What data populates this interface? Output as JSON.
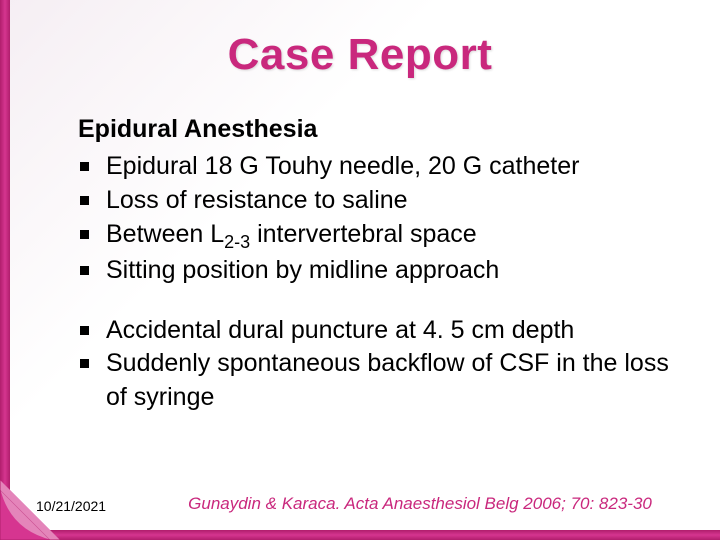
{
  "colors": {
    "accent": "#c9287d",
    "border_dark": "#b01e6c",
    "border_light": "#d63590",
    "bg_tint": "#f5eef3",
    "text": "#000000"
  },
  "typography": {
    "title_fontsize": 44,
    "subtitle_fontsize": 25,
    "body_fontsize": 25,
    "citation_fontsize": 17,
    "date_fontsize": 14,
    "font_family": "Arial"
  },
  "title": "Case Report",
  "subtitle": "Epidural Anesthesia",
  "group1": {
    "items": [
      "Epidural 18 G Touhy needle, 20 G catheter",
      "Loss of resistance to saline",
      "Between L__SUB__2-3__ENDSUB__ intervertebral space",
      "Sitting position by midline approach"
    ]
  },
  "group2": {
    "items": [
      "Accidental dural puncture at 4. 5 cm depth",
      "Suddenly spontaneous backflow of CSF in the loss of syringe"
    ]
  },
  "footer": {
    "date": "10/21/2021",
    "citation": "Gunaydin & Karaca. Acta Anaesthesiol Belg 2006; 70: 823-30"
  }
}
